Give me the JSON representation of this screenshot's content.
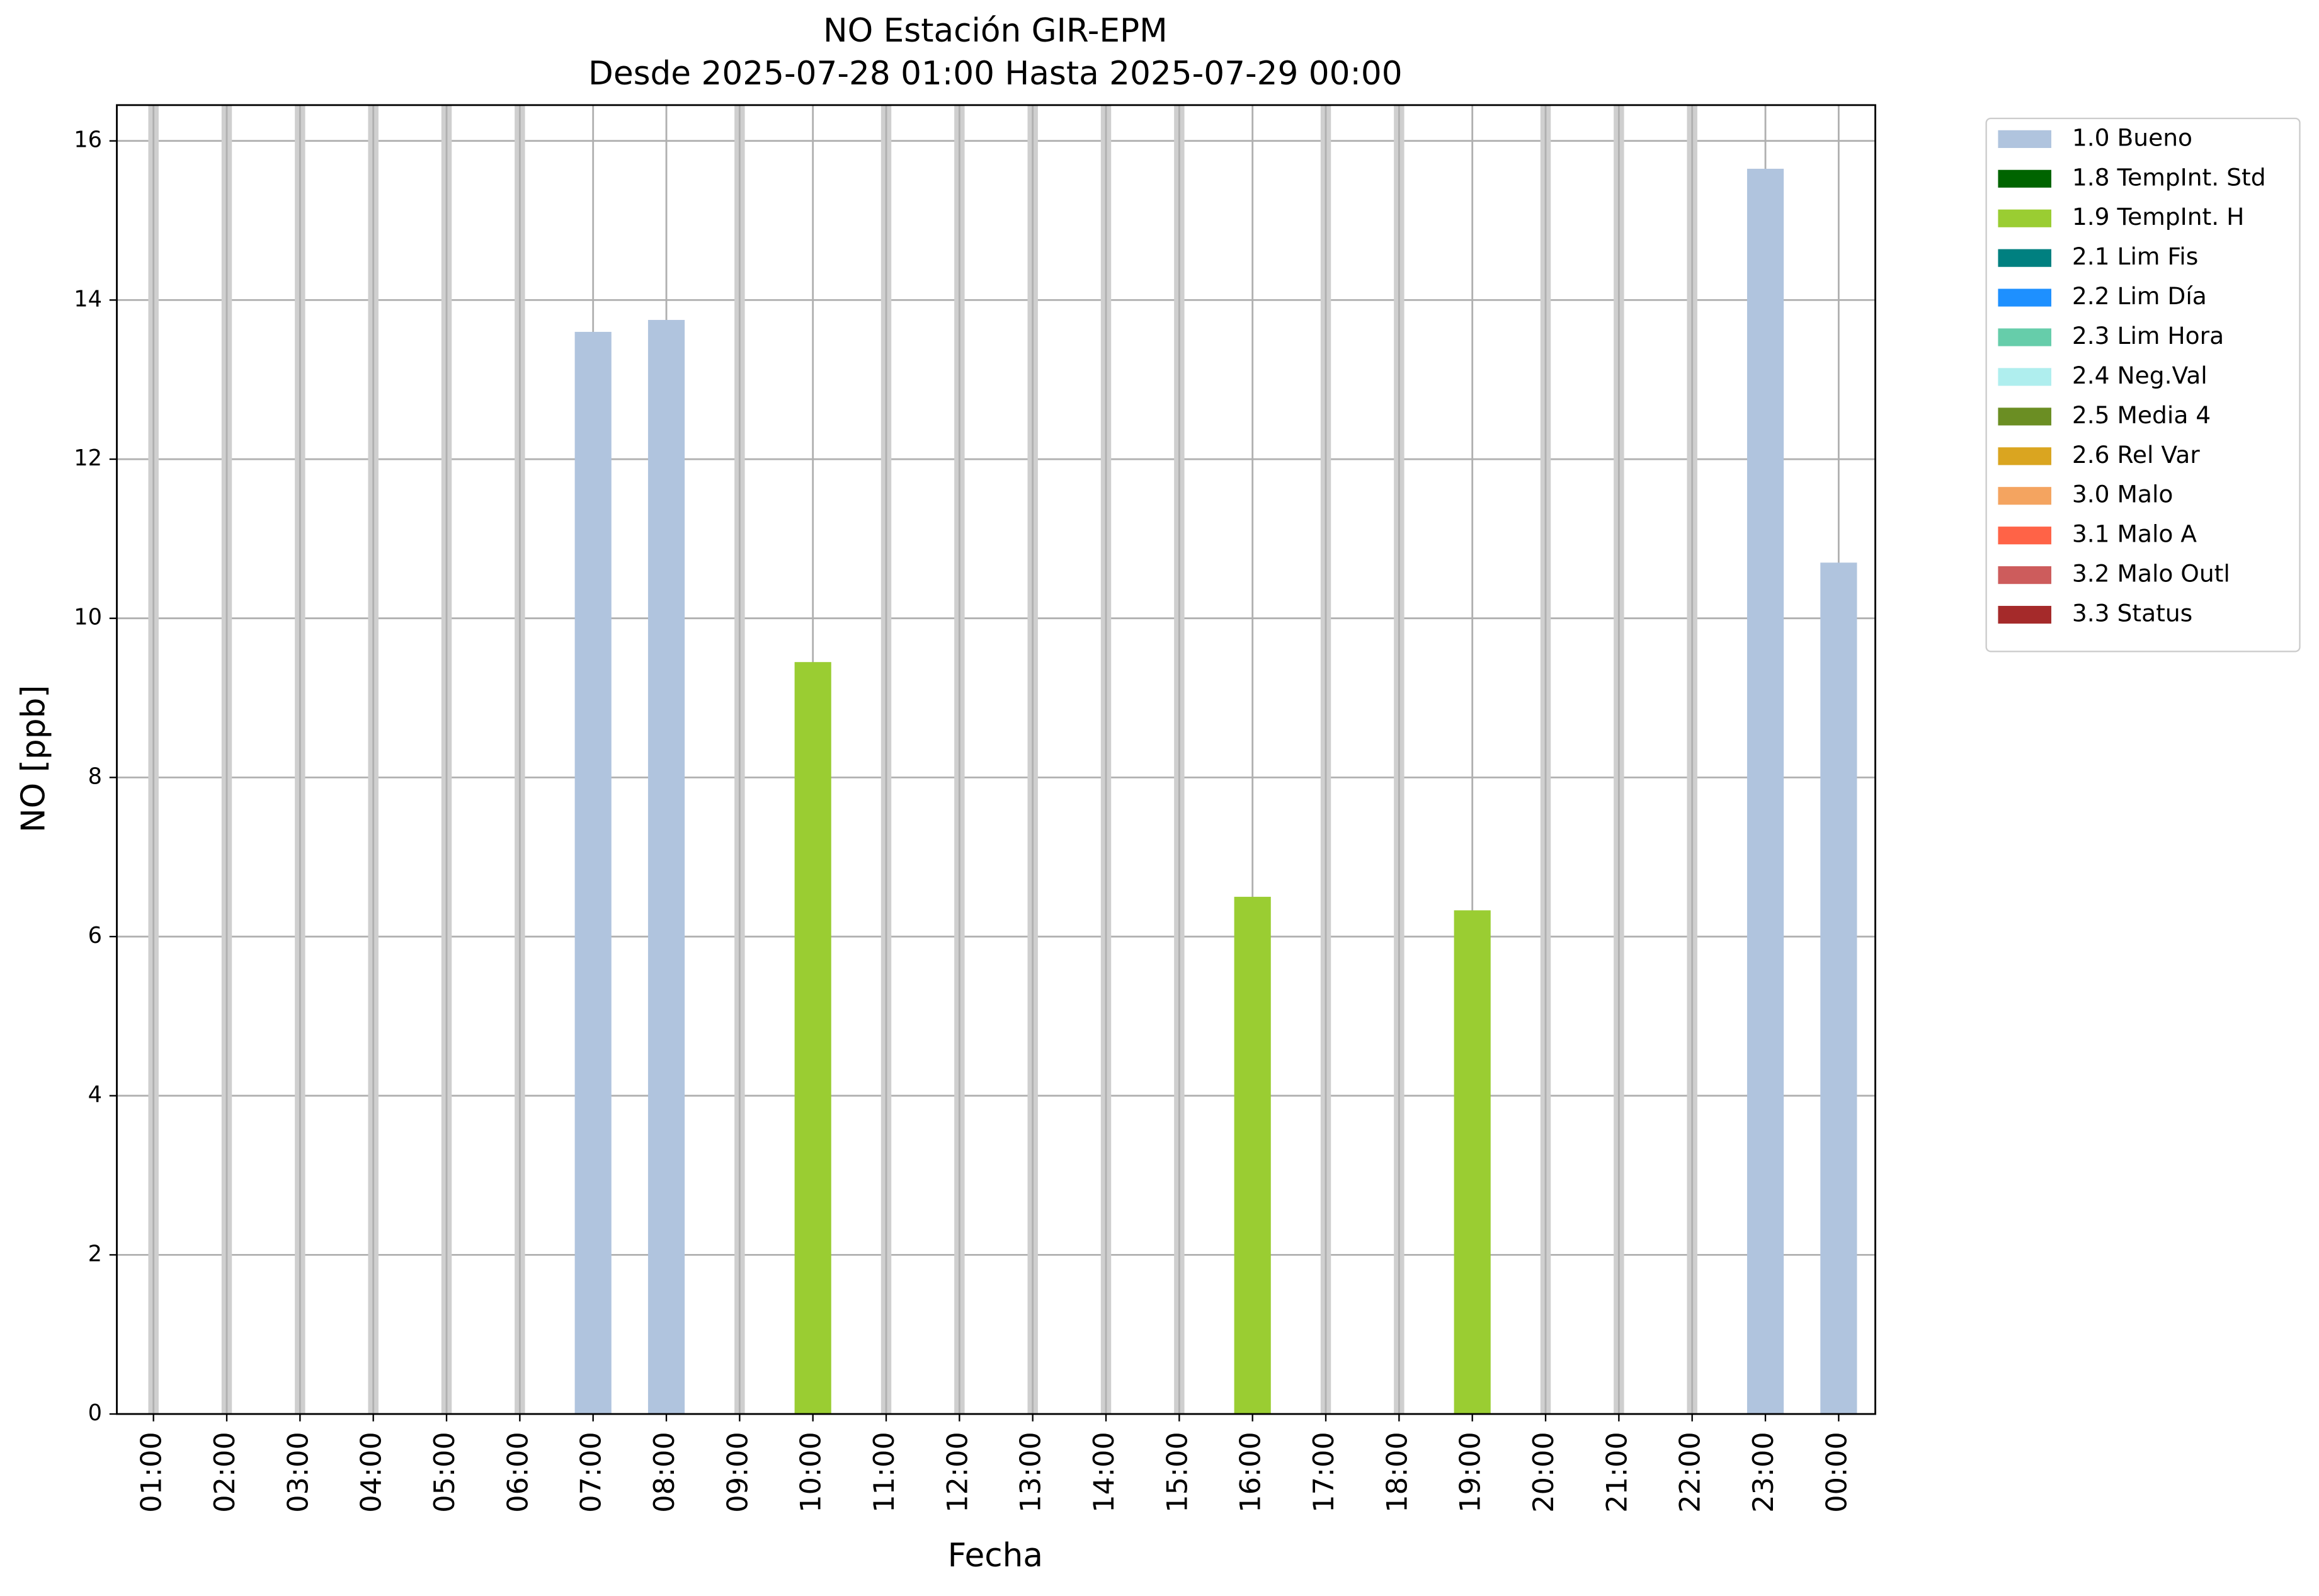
{
  "chart_data": {
    "type": "bar",
    "stacked": true,
    "title": "NO Estación GIR-EPM",
    "subtitle": "Desde 2025-07-28 01:00 Hasta 2025-07-29 00:00",
    "x_label": "Fecha",
    "y_label": "NO [ppb]",
    "categories": [
      "01:00",
      "02:00",
      "03:00",
      "04:00",
      "05:00",
      "06:00",
      "07:00",
      "08:00",
      "09:00",
      "10:00",
      "11:00",
      "12:00",
      "13:00",
      "14:00",
      "15:00",
      "16:00",
      "17:00",
      "18:00",
      "19:00",
      "20:00",
      "21:00",
      "22:00",
      "23:00",
      "00:00"
    ],
    "series": [
      {
        "name": "1.0 Bueno",
        "color": "#b0c4de",
        "values": [
          null,
          null,
          null,
          null,
          null,
          null,
          13.6,
          13.75,
          null,
          null,
          null,
          null,
          null,
          null,
          null,
          null,
          null,
          null,
          null,
          null,
          null,
          null,
          15.65,
          10.7
        ]
      },
      {
        "name": "1.8 TempInt. Std",
        "color": "#006400",
        "values": [
          null,
          null,
          null,
          null,
          null,
          null,
          null,
          null,
          null,
          null,
          null,
          null,
          null,
          null,
          null,
          null,
          null,
          null,
          null,
          null,
          null,
          null,
          null,
          null
        ]
      },
      {
        "name": "1.9 TempInt. H",
        "color": "#9acd32",
        "values": [
          null,
          null,
          null,
          null,
          null,
          null,
          null,
          null,
          null,
          9.45,
          null,
          null,
          null,
          null,
          null,
          6.5,
          null,
          null,
          6.33,
          null,
          null,
          null,
          null,
          null
        ]
      },
      {
        "name": "2.1 Lim Fis",
        "color": "#008080",
        "values": [
          null,
          null,
          null,
          null,
          null,
          null,
          null,
          null,
          null,
          null,
          null,
          null,
          null,
          null,
          null,
          null,
          null,
          null,
          null,
          null,
          null,
          null,
          null,
          null
        ]
      },
      {
        "name": "2.2 Lim Día",
        "color": "#1e90ff",
        "values": [
          null,
          null,
          null,
          null,
          null,
          null,
          null,
          null,
          null,
          null,
          null,
          null,
          null,
          null,
          null,
          null,
          null,
          null,
          null,
          null,
          null,
          null,
          null,
          null
        ]
      },
      {
        "name": "2.3 Lim Hora",
        "color": "#66cdaa",
        "values": [
          null,
          null,
          null,
          null,
          null,
          null,
          null,
          null,
          null,
          null,
          null,
          null,
          null,
          null,
          null,
          null,
          null,
          null,
          null,
          null,
          null,
          null,
          null,
          null
        ]
      },
      {
        "name": "2.4 Neg.Val",
        "color": "#afeeee",
        "values": [
          null,
          null,
          null,
          null,
          null,
          null,
          null,
          null,
          null,
          null,
          null,
          null,
          null,
          null,
          null,
          null,
          null,
          null,
          null,
          null,
          null,
          null,
          null,
          null
        ]
      },
      {
        "name": "2.5 Media 4",
        "color": "#6b8e23",
        "values": [
          null,
          null,
          null,
          null,
          null,
          null,
          null,
          null,
          null,
          null,
          null,
          null,
          null,
          null,
          null,
          null,
          null,
          null,
          null,
          null,
          null,
          null,
          null,
          null
        ]
      },
      {
        "name": "2.6 Rel Var",
        "color": "#daa520",
        "values": [
          null,
          null,
          null,
          null,
          null,
          null,
          null,
          null,
          null,
          null,
          null,
          null,
          null,
          null,
          null,
          null,
          null,
          null,
          null,
          null,
          null,
          null,
          null,
          null
        ]
      },
      {
        "name": "3.0 Malo",
        "color": "#f4a460",
        "values": [
          null,
          null,
          null,
          null,
          null,
          null,
          null,
          null,
          null,
          null,
          null,
          null,
          null,
          null,
          null,
          null,
          null,
          null,
          null,
          null,
          null,
          null,
          null,
          null
        ]
      },
      {
        "name": "3.1 Malo A",
        "color": "#ff6347",
        "values": [
          null,
          null,
          null,
          null,
          null,
          null,
          null,
          null,
          null,
          null,
          null,
          null,
          null,
          null,
          null,
          null,
          null,
          null,
          null,
          null,
          null,
          null,
          null,
          null
        ]
      },
      {
        "name": "3.2 Malo Outl",
        "color": "#cd5c5c",
        "values": [
          null,
          null,
          null,
          null,
          null,
          null,
          null,
          null,
          null,
          null,
          null,
          null,
          null,
          null,
          null,
          null,
          null,
          null,
          null,
          null,
          null,
          null,
          null,
          null
        ]
      },
      {
        "name": "3.3 Status",
        "color": "#a52a2a",
        "values": [
          null,
          null,
          null,
          null,
          null,
          null,
          null,
          null,
          null,
          null,
          null,
          null,
          null,
          null,
          null,
          null,
          null,
          null,
          null,
          null,
          null,
          null,
          null,
          null
        ]
      }
    ],
    "ylim": [
      0,
      16.45
    ],
    "yticks": [
      0,
      2,
      4,
      6,
      8,
      10,
      12,
      14,
      16
    ],
    "grid": true,
    "legend": "outside-right"
  }
}
